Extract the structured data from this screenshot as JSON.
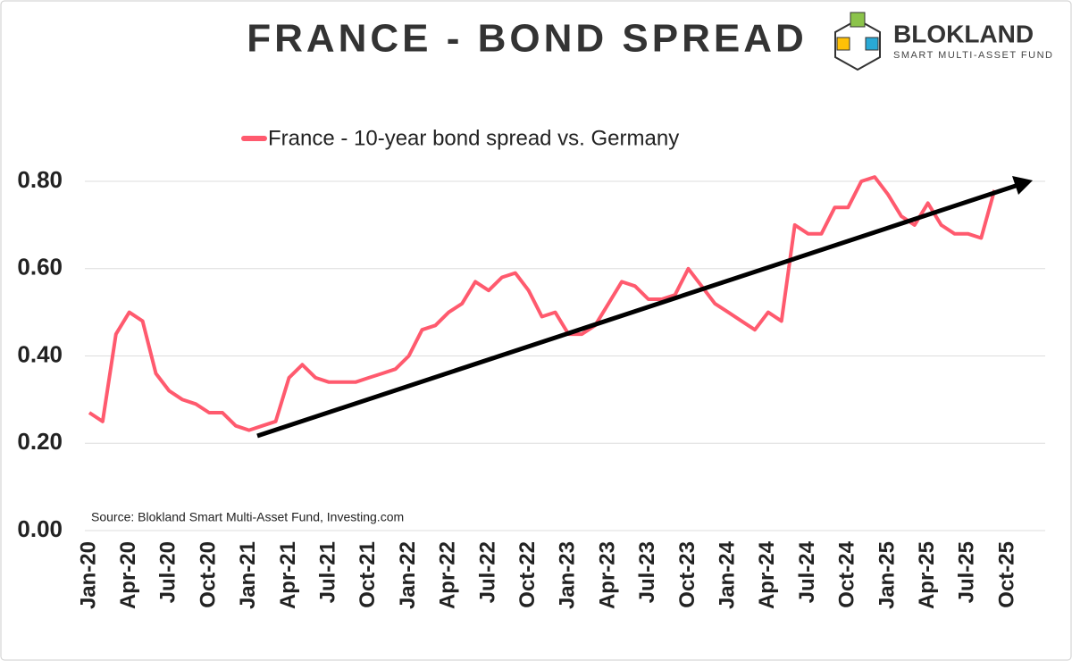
{
  "chart_data": {
    "type": "line",
    "title": "FRANCE - BOND SPREAD",
    "logo": {
      "name": "BLOKLAND",
      "tagline": "SMART MULTI-ASSET FUND"
    },
    "source": "Source: Blokland Smart Multi-Asset Fund, Investing.com",
    "categories": [
      "Jan-20",
      null,
      null,
      "Apr-20",
      null,
      null,
      "Jul-20",
      null,
      null,
      "Oct-20",
      null,
      null,
      "Jan-21",
      null,
      null,
      "Apr-21",
      null,
      null,
      "Jul-21",
      null,
      null,
      "Oct-21",
      null,
      null,
      "Jan-22",
      null,
      null,
      "Apr-22",
      null,
      null,
      "Jul-22",
      null,
      null,
      "Oct-22",
      null,
      null,
      "Jan-23",
      null,
      null,
      "Apr-23",
      null,
      null,
      "Jul-23",
      null,
      null,
      "Oct-23",
      null,
      null,
      "Jan-24",
      null,
      null,
      "Apr-24",
      null,
      null,
      "Jul-24",
      null,
      null,
      "Oct-24",
      null,
      null,
      "Jan-25",
      null,
      null,
      "Apr-25",
      null,
      null,
      "Jul-25",
      null,
      null,
      "Oct-25",
      null,
      null
    ],
    "series": [
      {
        "name": "France - 10-year bond spread vs. Germany",
        "color": "#ff5a6e",
        "values": [
          0.27,
          0.25,
          0.45,
          0.5,
          0.48,
          0.36,
          0.32,
          0.3,
          0.29,
          0.27,
          0.27,
          0.24,
          0.23,
          0.24,
          0.25,
          0.35,
          0.38,
          0.35,
          0.34,
          0.34,
          0.34,
          0.35,
          0.36,
          0.37,
          0.4,
          0.46,
          0.47,
          0.5,
          0.52,
          0.57,
          0.55,
          0.58,
          0.59,
          0.55,
          0.49,
          0.5,
          0.45,
          0.45,
          0.47,
          0.52,
          0.57,
          0.56,
          0.53,
          0.53,
          0.54,
          0.6,
          0.56,
          0.52,
          0.5,
          0.48,
          0.46,
          0.5,
          0.48,
          0.7,
          0.68,
          0.68,
          0.74,
          0.74,
          0.8,
          0.81,
          0.77,
          0.72,
          0.7,
          0.75,
          0.7,
          0.68,
          0.68,
          0.67,
          0.78,
          null,
          null,
          null
        ]
      }
    ],
    "ylim": [
      0,
      0.95
    ],
    "yticks": [
      {
        "value": 0,
        "label": "0.00"
      },
      {
        "value": 0.2,
        "label": "0.20"
      },
      {
        "value": 0.4,
        "label": "0.40"
      },
      {
        "value": 0.6,
        "label": "0.60"
      },
      {
        "value": 0.8,
        "label": "0.80"
      }
    ],
    "grid": true
  }
}
